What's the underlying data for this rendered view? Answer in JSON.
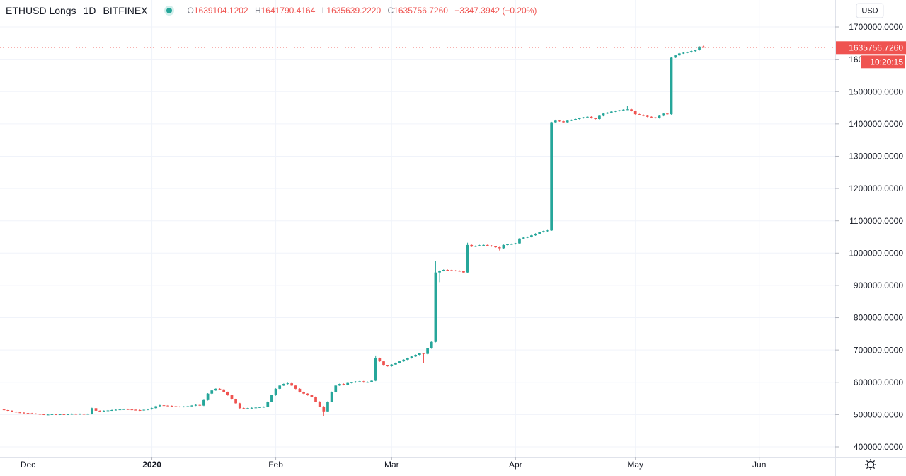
{
  "chart_data": {
    "type": "candlestick",
    "title": "ETHUSD Longs",
    "interval": "1D",
    "exchange": "BITFINEX",
    "legend": {
      "labels": [
        "O",
        "H",
        "L",
        "C"
      ],
      "values": [
        "1639104.1202",
        "1641790.4164",
        "1635639.2220",
        "1635756.7260"
      ],
      "change": "−3347.3942 (−0.20%)"
    },
    "currency": "USD",
    "price_label": "1635756.7260",
    "countdown": "10:20:15",
    "up_color": "#26a69a",
    "down_color": "#ef5350",
    "grid": true,
    "xlim": [
      -1,
      208
    ],
    "xticks": [
      {
        "value": 6,
        "label": "Dec"
      },
      {
        "value": 37,
        "label": "2020"
      },
      {
        "value": 68,
        "label": "Feb"
      },
      {
        "value": 97,
        "label": "Mar"
      },
      {
        "value": 128,
        "label": "Apr"
      },
      {
        "value": 158,
        "label": "May"
      },
      {
        "value": 189,
        "label": "Jun"
      }
    ],
    "ylim": [
      369300,
      1783300
    ],
    "yticks": [
      {
        "value": 400000,
        "label": "400000.0000"
      },
      {
        "value": 500000,
        "label": "500000.0000"
      },
      {
        "value": 600000,
        "label": "600000.0000"
      },
      {
        "value": 700000,
        "label": "700000.0000"
      },
      {
        "value": 800000,
        "label": "800000.0000"
      },
      {
        "value": 900000,
        "label": "900000.0000"
      },
      {
        "value": 1000000,
        "label": "1000000.0000"
      },
      {
        "value": 1100000,
        "label": "1100000.0000"
      },
      {
        "value": 1200000,
        "label": "1200000.0000"
      },
      {
        "value": 1300000,
        "label": "1300000.0000"
      },
      {
        "value": 1400000,
        "label": "1400000.0000"
      },
      {
        "value": 1500000,
        "label": "1500000.0000"
      },
      {
        "value": 1600000,
        "label": "1600000.0000"
      },
      {
        "value": 1700000,
        "label": "1700000.0000"
      }
    ],
    "ohlc": [
      [
        516000,
        517500,
        512500,
        514000
      ],
      [
        514000,
        515500,
        510500,
        512000
      ],
      [
        512000,
        513500,
        507500,
        509000
      ],
      [
        509000,
        510500,
        505500,
        507000
      ],
      [
        507000,
        508500,
        504500,
        506000
      ],
      [
        506000,
        507500,
        503500,
        505000
      ],
      [
        505000,
        506500,
        502500,
        504000
      ],
      [
        504000,
        505500,
        501500,
        503000
      ],
      [
        503000,
        504500,
        500500,
        502000
      ],
      [
        502000,
        503500,
        499500,
        501000
      ],
      [
        501000,
        502500,
        498500,
        500000
      ],
      [
        500000,
        501500,
        498500,
        500000
      ],
      [
        500000,
        502500,
        498500,
        501000
      ],
      [
        501000,
        502500,
        498500,
        500000
      ],
      [
        500000,
        502500,
        498500,
        501000
      ],
      [
        501000,
        502500,
        498500,
        500000
      ],
      [
        500000,
        502500,
        498500,
        501000
      ],
      [
        501000,
        503500,
        499500,
        502000
      ],
      [
        502000,
        503500,
        499500,
        501000
      ],
      [
        501000,
        503500,
        499500,
        502000
      ],
      [
        502000,
        503500,
        499500,
        501000
      ],
      [
        501000,
        503500,
        499500,
        502000
      ],
      [
        502000,
        521500,
        500500,
        520000
      ],
      [
        520000,
        521500,
        510500,
        512000
      ],
      [
        512000,
        513500,
        509500,
        511000
      ],
      [
        511000,
        513500,
        509500,
        512000
      ],
      [
        512000,
        514500,
        510500,
        513000
      ],
      [
        513000,
        515500,
        511500,
        514000
      ],
      [
        514000,
        516500,
        512500,
        515000
      ],
      [
        515000,
        517500,
        513500,
        516000
      ],
      [
        516000,
        518500,
        514500,
        517000
      ],
      [
        517000,
        518500,
        514500,
        516000
      ],
      [
        516000,
        517500,
        513500,
        515000
      ],
      [
        515000,
        516500,
        512500,
        514000
      ],
      [
        514000,
        515500,
        511500,
        513000
      ],
      [
        513000,
        516500,
        511500,
        515000
      ],
      [
        515000,
        518500,
        513500,
        517000
      ],
      [
        517000,
        521500,
        515500,
        520000
      ],
      [
        520000,
        527500,
        518500,
        526000
      ],
      [
        526000,
        530500,
        524500,
        529000
      ],
      [
        529000,
        530500,
        526500,
        528000
      ],
      [
        528000,
        529500,
        525500,
        527000
      ],
      [
        527000,
        528500,
        524500,
        526000
      ],
      [
        526000,
        527500,
        523500,
        525000
      ],
      [
        525000,
        526500,
        522500,
        524000
      ],
      [
        524000,
        526500,
        522500,
        525000
      ],
      [
        525000,
        527500,
        523500,
        526000
      ],
      [
        526000,
        529500,
        524500,
        528000
      ],
      [
        528000,
        531500,
        526500,
        530000
      ],
      [
        530000,
        531500,
        526500,
        528000
      ],
      [
        528000,
        546500,
        526500,
        545000
      ],
      [
        545000,
        566500,
        543500,
        565000
      ],
      [
        565000,
        576500,
        563500,
        575000
      ],
      [
        575000,
        581500,
        573500,
        580000
      ],
      [
        580000,
        581500,
        576500,
        578000
      ],
      [
        578000,
        579500,
        568500,
        570000
      ],
      [
        570000,
        571500,
        558500,
        560000
      ],
      [
        560000,
        561500,
        546500,
        548000
      ],
      [
        548000,
        549500,
        533500,
        535000
      ],
      [
        535000,
        536500,
        518500,
        520000
      ],
      [
        520000,
        521500,
        516500,
        518000
      ],
      [
        518000,
        521500,
        516500,
        520000
      ],
      [
        520000,
        522500,
        518500,
        521000
      ],
      [
        521000,
        523500,
        519500,
        522000
      ],
      [
        522000,
        524500,
        520500,
        523000
      ],
      [
        523000,
        525500,
        521500,
        524000
      ],
      [
        524000,
        541500,
        522500,
        540000
      ],
      [
        540000,
        561500,
        538500,
        560000
      ],
      [
        560000,
        581500,
        558500,
        580000
      ],
      [
        580000,
        591500,
        578500,
        590000
      ],
      [
        590000,
        596500,
        588500,
        595000
      ],
      [
        595000,
        598500,
        593500,
        597000
      ],
      [
        597000,
        598500,
        588500,
        590000
      ],
      [
        590000,
        591500,
        578500,
        580000
      ],
      [
        580000,
        581500,
        568500,
        570000
      ],
      [
        570000,
        571500,
        563500,
        565000
      ],
      [
        565000,
        566500,
        558500,
        560000
      ],
      [
        560000,
        561500,
        553500,
        555000
      ],
      [
        555000,
        556500,
        538500,
        540000
      ],
      [
        540000,
        541500,
        523500,
        525000
      ],
      [
        525000,
        526500,
        496000,
        510000
      ],
      [
        510000,
        541500,
        508500,
        540000
      ],
      [
        540000,
        571500,
        538500,
        570000
      ],
      [
        570000,
        591500,
        568500,
        590000
      ],
      [
        590000,
        596500,
        588500,
        595000
      ],
      [
        595000,
        596500,
        590500,
        592000
      ],
      [
        592000,
        599500,
        590500,
        598000
      ],
      [
        598000,
        601500,
        596500,
        600000
      ],
      [
        600000,
        603500,
        598500,
        602000
      ],
      [
        602000,
        604500,
        600500,
        603000
      ],
      [
        603000,
        604500,
        598500,
        600000
      ],
      [
        600000,
        602500,
        598500,
        601000
      ],
      [
        601000,
        606500,
        599500,
        605000
      ],
      [
        605000,
        683000,
        603500,
        675000
      ],
      [
        675000,
        676500,
        663500,
        665000
      ],
      [
        665000,
        666500,
        650500,
        652000
      ],
      [
        652000,
        653500,
        648500,
        650000
      ],
      [
        650000,
        656500,
        648500,
        655000
      ],
      [
        655000,
        661500,
        653500,
        660000
      ],
      [
        660000,
        666500,
        658500,
        665000
      ],
      [
        665000,
        671500,
        663500,
        670000
      ],
      [
        670000,
        676500,
        668500,
        675000
      ],
      [
        675000,
        681500,
        673500,
        680000
      ],
      [
        680000,
        686500,
        678500,
        685000
      ],
      [
        685000,
        691500,
        683500,
        690000
      ],
      [
        690000,
        691500,
        660000,
        688000
      ],
      [
        688000,
        706500,
        686500,
        705000
      ],
      [
        705000,
        726500,
        703500,
        725000
      ],
      [
        725000,
        975000,
        723500,
        940000
      ],
      [
        940000,
        946500,
        910000,
        945000
      ],
      [
        945000,
        949500,
        943500,
        948000
      ],
      [
        948000,
        949500,
        945500,
        947000
      ],
      [
        947000,
        948500,
        944500,
        946000
      ],
      [
        946000,
        947500,
        943500,
        945000
      ],
      [
        945000,
        946500,
        942500,
        944000
      ],
      [
        944000,
        945500,
        938500,
        940000
      ],
      [
        940000,
        1032000,
        938500,
        1025000
      ],
      [
        1025000,
        1026500,
        1018500,
        1020000
      ],
      [
        1020000,
        1023500,
        1018500,
        1022000
      ],
      [
        1022000,
        1025500,
        1020500,
        1024000
      ],
      [
        1024000,
        1026500,
        1022500,
        1025000
      ],
      [
        1025000,
        1026500,
        1021500,
        1023000
      ],
      [
        1023000,
        1024500,
        1019500,
        1021000
      ],
      [
        1021000,
        1022500,
        1016500,
        1018000
      ],
      [
        1018000,
        1019500,
        1008000,
        1015000
      ],
      [
        1015000,
        1026500,
        1013500,
        1025000
      ],
      [
        1025000,
        1028500,
        1023500,
        1027000
      ],
      [
        1027000,
        1029500,
        1025500,
        1028000
      ],
      [
        1028000,
        1031500,
        1026500,
        1030000
      ],
      [
        1030000,
        1046500,
        1028500,
        1045000
      ],
      [
        1045000,
        1049500,
        1043500,
        1048000
      ],
      [
        1048000,
        1051500,
        1046500,
        1050000
      ],
      [
        1050000,
        1056500,
        1048500,
        1055000
      ],
      [
        1055000,
        1061500,
        1053500,
        1060000
      ],
      [
        1060000,
        1066500,
        1058500,
        1065000
      ],
      [
        1065000,
        1069500,
        1063500,
        1068000
      ],
      [
        1068000,
        1071500,
        1066500,
        1070000
      ],
      [
        1070000,
        1406500,
        1068500,
        1405000
      ],
      [
        1405000,
        1413000,
        1403500,
        1410000
      ],
      [
        1410000,
        1411500,
        1406500,
        1408000
      ],
      [
        1408000,
        1409500,
        1403500,
        1405000
      ],
      [
        1405000,
        1411500,
        1403500,
        1410000
      ],
      [
        1410000,
        1413500,
        1408500,
        1412000
      ],
      [
        1412000,
        1416500,
        1410500,
        1415000
      ],
      [
        1415000,
        1419500,
        1413500,
        1418000
      ],
      [
        1418000,
        1421500,
        1416500,
        1420000
      ],
      [
        1420000,
        1423500,
        1418500,
        1422000
      ],
      [
        1422000,
        1423500,
        1416500,
        1418000
      ],
      [
        1418000,
        1419500,
        1413500,
        1415000
      ],
      [
        1415000,
        1426500,
        1413500,
        1425000
      ],
      [
        1425000,
        1433500,
        1423500,
        1432000
      ],
      [
        1432000,
        1436500,
        1430500,
        1435000
      ],
      [
        1435000,
        1439500,
        1433500,
        1438000
      ],
      [
        1438000,
        1441500,
        1436500,
        1440000
      ],
      [
        1440000,
        1443500,
        1438500,
        1442000
      ],
      [
        1442000,
        1445500,
        1440500,
        1444000
      ],
      [
        1444000,
        1455000,
        1442500,
        1445000
      ],
      [
        1445000,
        1446500,
        1438500,
        1440000
      ],
      [
        1440000,
        1441500,
        1428500,
        1430000
      ],
      [
        1430000,
        1431500,
        1426500,
        1428000
      ],
      [
        1428000,
        1429500,
        1423500,
        1425000
      ],
      [
        1425000,
        1426500,
        1420500,
        1422000
      ],
      [
        1422000,
        1423500,
        1418500,
        1420000
      ],
      [
        1420000,
        1421500,
        1416500,
        1418000
      ],
      [
        1418000,
        1426500,
        1416500,
        1425000
      ],
      [
        1425000,
        1433500,
        1423500,
        1432000
      ],
      [
        1432000,
        1433500,
        1428500,
        1430000
      ],
      [
        1430000,
        1606500,
        1428500,
        1605000
      ],
      [
        1605000,
        1613500,
        1603500,
        1612000
      ],
      [
        1612000,
        1619500,
        1610500,
        1618000
      ],
      [
        1618000,
        1621500,
        1616500,
        1620000
      ],
      [
        1620000,
        1623500,
        1618500,
        1622000
      ],
      [
        1622000,
        1626500,
        1620500,
        1625000
      ],
      [
        1625000,
        1629500,
        1623500,
        1628000
      ],
      [
        1628000,
        1640500,
        1626500,
        1639000
      ],
      [
        1639104.1202,
        1641790.4164,
        1635639.222,
        1635756.726
      ]
    ]
  }
}
